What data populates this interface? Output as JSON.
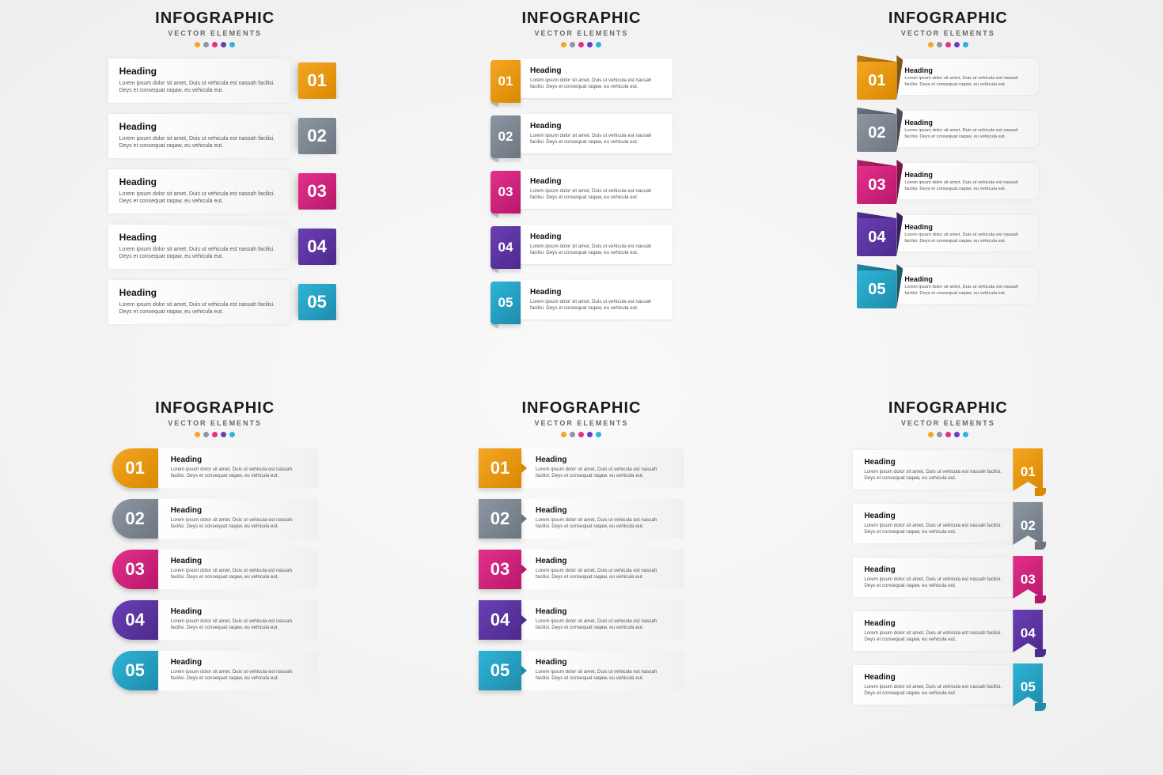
{
  "title": "INFOGRAPHIC",
  "subtitle": "VECTOR ELEMENTS",
  "item_heading": "Heading",
  "item_body": "Lorem ipsum dolor sit amet, Duis ut vehicula est nassah facilisi. Deys et consequat raqaw, eu vehicula eut.",
  "palette": [
    "#f5a623",
    "#8d97a3",
    "#e4308b",
    "#6a3fb5",
    "#2fb4d8"
  ],
  "palette_dark": [
    "#d98800",
    "#6d7680",
    "#b8186c",
    "#4d2a8c",
    "#1e8caa"
  ],
  "numbers": [
    "01",
    "02",
    "03",
    "04",
    "05"
  ],
  "panels": 6,
  "items_per_panel": 5,
  "background": "#f2f2f2",
  "title_fontsize": 20,
  "subtitle_fontsize": 9,
  "heading_fontsize": 12,
  "body_fontsize": 7,
  "dot_size": 7,
  "number_fontsize": 22,
  "card_bg_gradient": [
    "#ffffff",
    "#f1f1f1"
  ]
}
